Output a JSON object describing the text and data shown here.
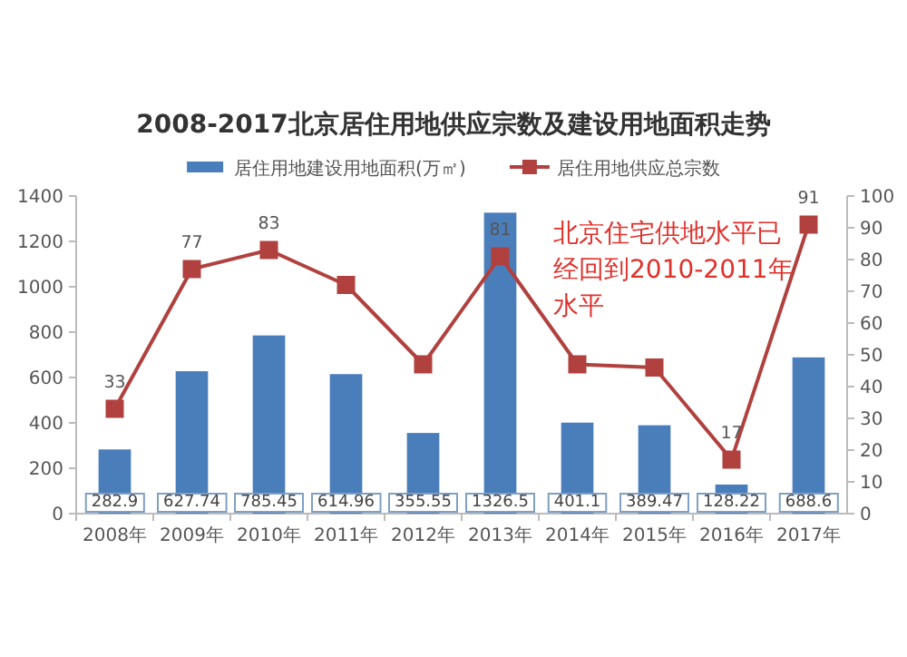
{
  "chart_data": {
    "type": "bar",
    "title": "2008-2017北京居住用地供应宗数及建设用地面积走势",
    "categories": [
      "2008年",
      "2009年",
      "2010年",
      "2011年",
      "2012年",
      "2013年",
      "2014年",
      "2015年",
      "2016年",
      "2017年"
    ],
    "series": [
      {
        "name": "居住用地建设用地面积(万㎡)",
        "color": "#4a7ebb",
        "values": [
          282.9,
          627.74,
          785.45,
          614.96,
          355.55,
          1326.5,
          401.1,
          389.47,
          128.22,
          688.6
        ],
        "value_labels": [
          "282.9",
          "627.74",
          "785.45",
          "614.96",
          "355.55",
          "1326.5",
          "401.1",
          "389.47",
          "128.22",
          "688.6"
        ]
      },
      {
        "name": "居住用地供应总宗数",
        "type": "line",
        "axis": "y2",
        "color": "#b0413e",
        "marker": "square",
        "values": [
          33,
          77,
          83,
          72,
          47,
          81,
          47,
          46,
          17,
          91
        ],
        "value_labels": [
          "33",
          "77",
          "83",
          null,
          null,
          "81",
          null,
          null,
          "17",
          "91"
        ]
      }
    ],
    "ylim": [
      0,
      1400
    ],
    "yticks": [
      0,
      200,
      400,
      600,
      800,
      1000,
      1200,
      1400
    ],
    "y2lim": [
      0,
      100
    ],
    "y2ticks": [
      0,
      10,
      20,
      30,
      40,
      50,
      60,
      70,
      80,
      90,
      100
    ],
    "legend": "top",
    "grid": false,
    "annotations": [
      "北京住宅供地水平已经回到2010-2011年水平"
    ]
  }
}
